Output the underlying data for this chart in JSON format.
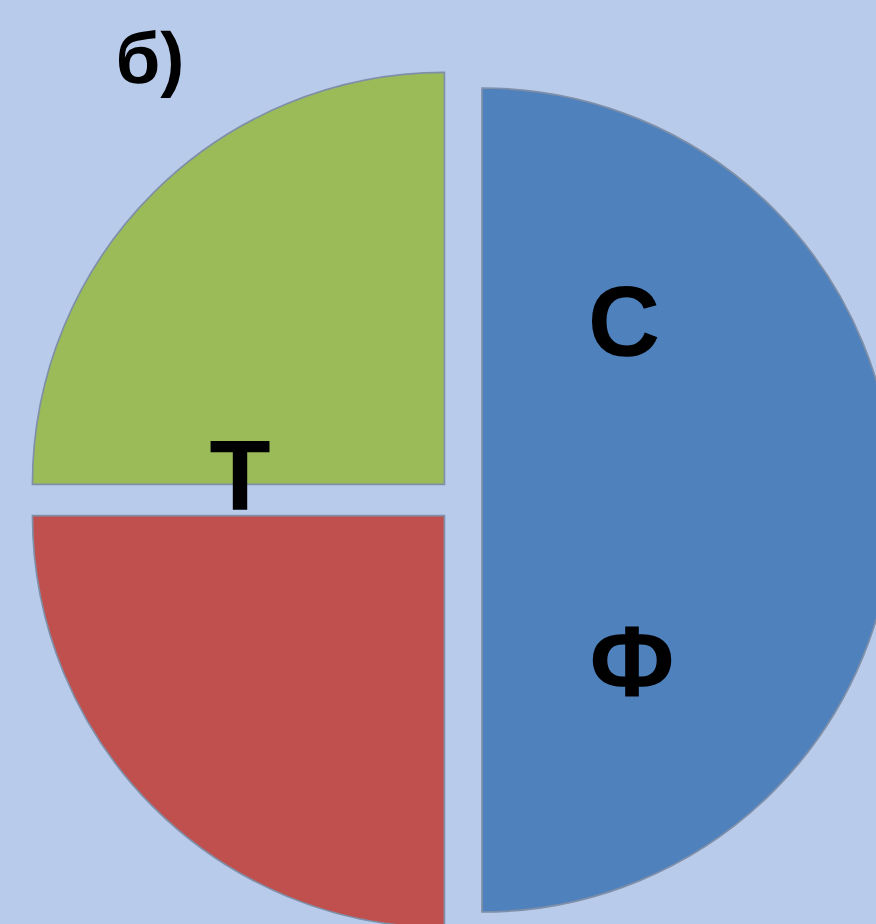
{
  "chart_data": {
    "type": "pie",
    "title": "б)",
    "categories": [
      null,
      null,
      null
    ],
    "values": [
      50,
      25,
      25
    ],
    "colors": [
      "#4f81bd",
      "#c0504d",
      "#9bbb59"
    ],
    "annotations": [
      "С",
      "Т",
      "Ф"
    ]
  }
}
